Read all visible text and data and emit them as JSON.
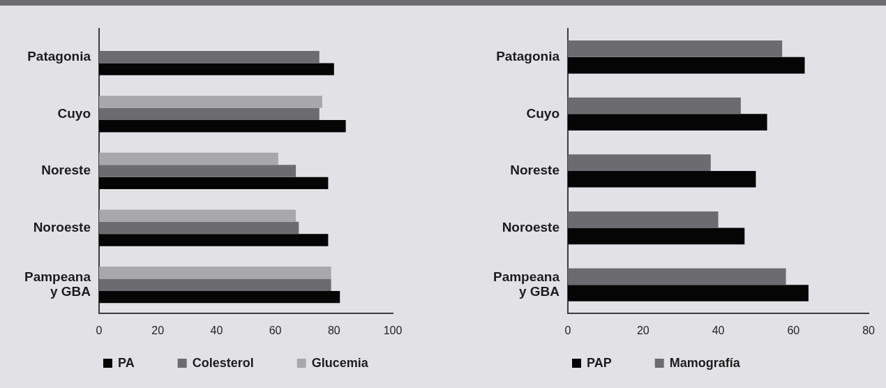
{
  "chart_data": [
    {
      "type": "bar",
      "orientation": "horizontal",
      "categories": [
        "Patagonia",
        "Cuyo",
        "Noreste",
        "Noroeste",
        "Pampeana y GBA"
      ],
      "series": [
        {
          "name": "PA",
          "color": "#050505",
          "values": [
            80,
            84,
            78,
            78,
            82
          ]
        },
        {
          "name": "Colesterol",
          "color": "#6c6c70",
          "values": [
            75,
            75,
            67,
            68,
            79
          ]
        },
        {
          "name": "Glucemia",
          "color": "#a8a8ac",
          "values": [
            null,
            76,
            61,
            67,
            79
          ]
        }
      ],
      "xlim": [
        0,
        100
      ],
      "xticks": [
        0,
        20,
        40,
        60,
        80,
        100
      ],
      "legend": "bottom"
    },
    {
      "type": "bar",
      "orientation": "horizontal",
      "categories": [
        "Patagonia",
        "Cuyo",
        "Noreste",
        "Noroeste",
        "Pampeana y GBA"
      ],
      "series": [
        {
          "name": "PAP",
          "color": "#050505",
          "values": [
            63,
            53,
            50,
            47,
            64
          ]
        },
        {
          "name": "Mamografía",
          "color": "#6c6c70",
          "values": [
            57,
            46,
            38,
            40,
            58
          ]
        }
      ],
      "xlim": [
        0,
        80
      ],
      "xticks": [
        0,
        20,
        40,
        60,
        80
      ],
      "legend": "bottom"
    }
  ]
}
